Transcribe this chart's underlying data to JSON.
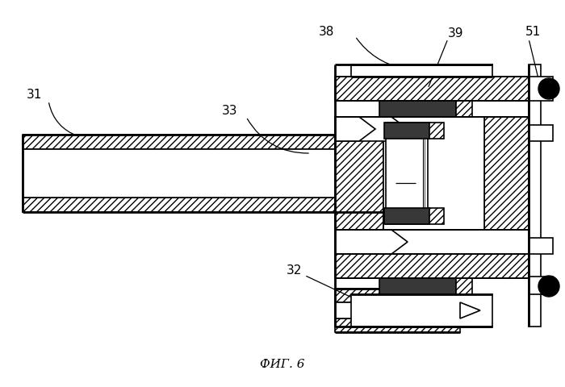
{
  "bg_color": "#ffffff",
  "line_color": "#000000",
  "fig_label": "ФИГ. 6",
  "lw": 1.2,
  "lw_thick": 2.0,
  "dark_fill": "#383838",
  "hatch_fill": "#ffffff"
}
